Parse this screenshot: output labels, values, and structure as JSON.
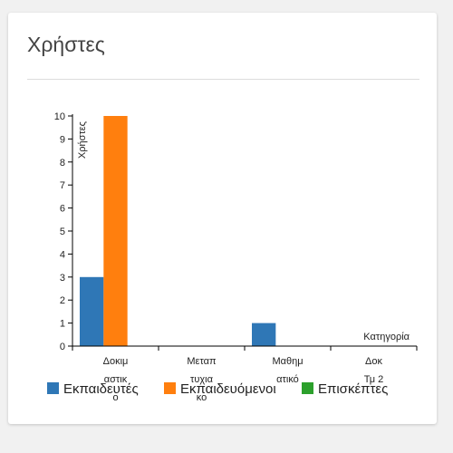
{
  "card": {
    "title": "Χρήστες"
  },
  "chart_data": {
    "type": "bar",
    "title": "",
    "xlabel": "Κατηγορία",
    "ylabel": "Χρήστες",
    "ylim": [
      0,
      10
    ],
    "yticks": [
      0,
      1,
      2,
      3,
      4,
      5,
      6,
      7,
      8,
      9,
      10
    ],
    "categories": [
      [
        "Δοκιμ",
        "αστικ",
        "ο"
      ],
      [
        "Μεταπ",
        "τυχια",
        "κο"
      ],
      [
        "Μαθημ",
        "ατικό"
      ],
      [
        "Δοκ",
        "Τμ 2"
      ]
    ],
    "series": [
      {
        "name": "Εκπαιδευτές",
        "color": "#2f77b6",
        "values": [
          3,
          0,
          1,
          0
        ]
      },
      {
        "name": "Εκπαιδευόμενοι",
        "color": "#ff7f0e",
        "values": [
          10,
          0,
          0,
          0
        ]
      },
      {
        "name": "Επισκέπτες",
        "color": "#2ca02c",
        "values": [
          0,
          0,
          0,
          0
        ]
      }
    ],
    "legend_position": "bottom",
    "grid": false
  }
}
